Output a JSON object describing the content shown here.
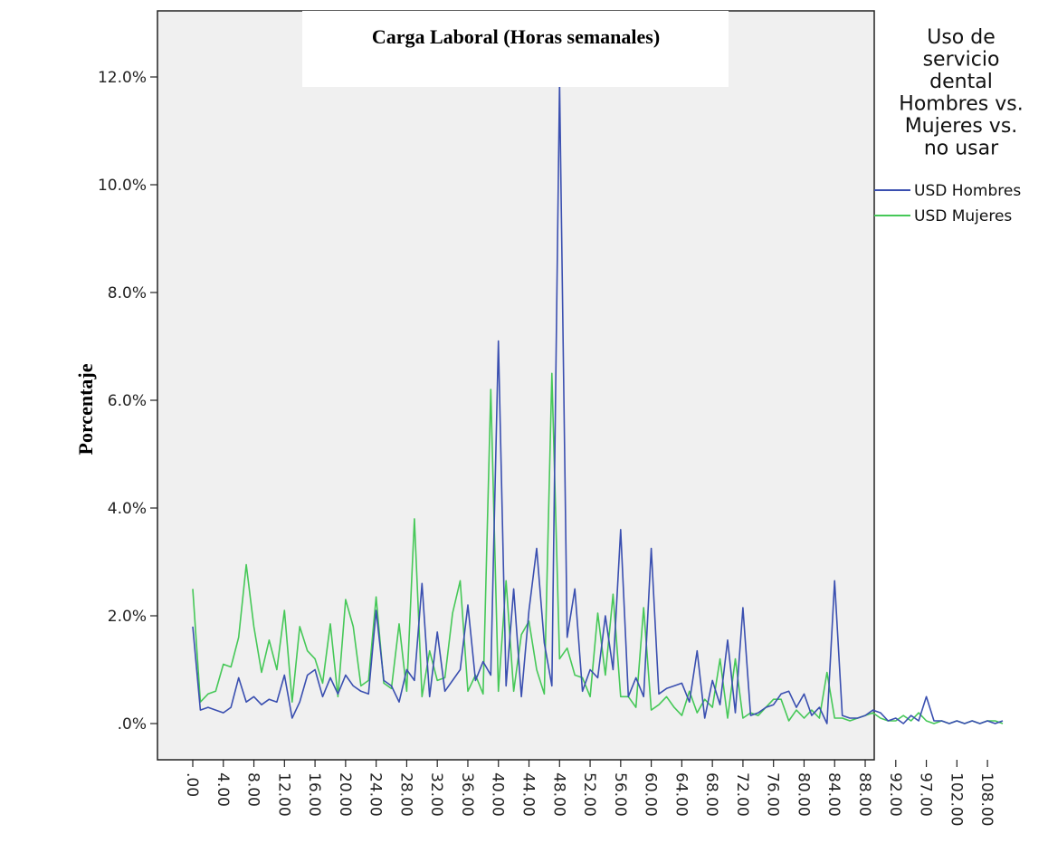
{
  "chart_data": {
    "type": "line",
    "title": "Carga Laboral (Horas semanales)",
    "ylabel": "Porcentaje",
    "xlabel": "",
    "ylim": [
      -0.7,
      13.4
    ],
    "yticks": [
      0,
      2,
      4,
      6,
      8,
      10,
      12
    ],
    "ytick_labels": [
      ".0%",
      "2.0%",
      "4.0%",
      "6.0%",
      "8.0%",
      "10.0%",
      "12.0%"
    ],
    "xtick_labels": [
      ".00",
      "4.00",
      "8.00",
      "12.00",
      "16.00",
      "20.00",
      "24.00",
      "28.00",
      "32.00",
      "36.00",
      "40.00",
      "44.00",
      "48.00",
      "52.00",
      "56.00",
      "60.00",
      "64.00",
      "68.00",
      "72.00",
      "76.00",
      "80.00",
      "84.00",
      "88.00",
      "92.00",
      "97.00",
      "102.00",
      "108.00"
    ],
    "grid": false,
    "legend": {
      "position": "right",
      "title_lines": [
        "Uso de",
        "servicio",
        "dental",
        "Hombres vs.",
        "Mujeres vs.",
        "no usar"
      ]
    },
    "series": [
      {
        "name": "USD Hombres",
        "color": "#3a4fb0",
        "values": [
          1.8,
          0.25,
          0.3,
          0.25,
          0.2,
          0.3,
          0.85,
          0.4,
          0.5,
          0.35,
          0.45,
          0.4,
          0.9,
          0.1,
          0.4,
          0.9,
          1.0,
          0.5,
          0.85,
          0.55,
          0.9,
          0.7,
          0.6,
          0.55,
          2.1,
          0.8,
          0.7,
          0.4,
          1.0,
          0.8,
          2.6,
          0.5,
          1.7,
          0.6,
          0.8,
          1.0,
          2.2,
          0.8,
          1.15,
          0.9,
          7.1,
          0.7,
          2.5,
          0.5,
          2.1,
          3.25,
          1.5,
          0.7,
          11.9,
          1.6,
          2.5,
          0.6,
          1.0,
          0.85,
          2.0,
          1.0,
          3.6,
          0.5,
          0.85,
          0.5,
          3.25,
          0.55,
          0.65,
          0.7,
          0.75,
          0.4,
          1.35,
          0.1,
          0.8,
          0.35,
          1.55,
          0.2,
          2.15,
          0.15,
          0.2,
          0.3,
          0.35,
          0.55,
          0.6,
          0.3,
          0.55,
          0.15,
          0.3,
          0.0,
          2.65,
          0.15,
          0.1,
          0.1,
          0.15,
          0.25,
          0.2,
          0.05,
          0.1,
          0.0,
          0.15,
          0.05,
          0.5,
          0.05,
          0.05,
          0.0,
          0.05,
          0.0,
          0.05,
          0.0,
          0.05,
          0.0,
          0.05
        ]
      },
      {
        "name": "USD Mujeres",
        "color": "#46c858",
        "values": [
          2.5,
          0.4,
          0.55,
          0.6,
          1.1,
          1.05,
          1.6,
          2.95,
          1.8,
          0.95,
          1.55,
          1.0,
          2.1,
          0.4,
          1.8,
          1.35,
          1.2,
          0.75,
          1.85,
          0.5,
          2.3,
          1.8,
          0.7,
          0.8,
          2.35,
          0.75,
          0.65,
          1.85,
          0.6,
          3.8,
          0.5,
          1.35,
          0.8,
          0.85,
          2.05,
          2.65,
          0.6,
          0.9,
          0.55,
          6.2,
          0.6,
          2.65,
          0.6,
          1.65,
          1.9,
          1.0,
          0.55,
          6.5,
          1.2,
          1.4,
          0.9,
          0.85,
          0.5,
          2.05,
          0.9,
          2.4,
          0.5,
          0.5,
          0.3,
          2.15,
          0.25,
          0.35,
          0.5,
          0.3,
          0.15,
          0.6,
          0.2,
          0.45,
          0.3,
          1.2,
          0.1,
          1.2,
          0.1,
          0.2,
          0.15,
          0.3,
          0.45,
          0.45,
          0.05,
          0.25,
          0.1,
          0.25,
          0.1,
          0.95,
          0.1,
          0.1,
          0.05,
          0.1,
          0.15,
          0.2,
          0.1,
          0.05,
          0.05,
          0.15,
          0.05,
          0.2,
          0.05,
          0.0,
          0.05,
          0.0,
          0.05,
          0.0,
          0.05,
          0.0,
          0.05,
          0.05,
          0.0
        ]
      }
    ]
  }
}
